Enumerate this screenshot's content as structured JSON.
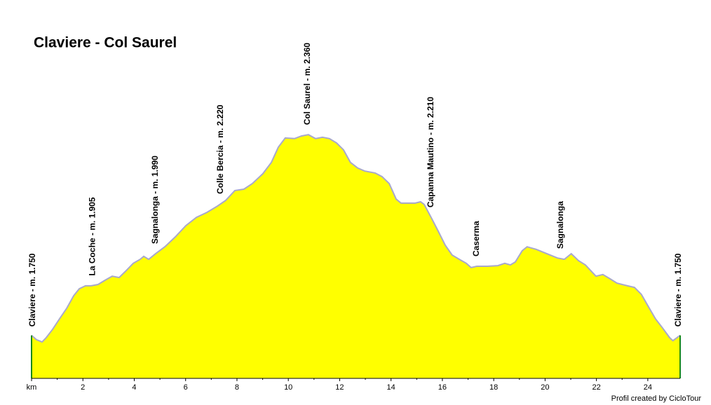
{
  "chart_data": {
    "type": "area",
    "title": "Claviere - Col Saurel",
    "credit": "Profil created by CicloTour",
    "x": [
      0,
      0.19,
      0.41,
      0.57,
      0.82,
      1.09,
      1.37,
      1.64,
      1.86,
      2.1,
      2.32,
      2.59,
      2.87,
      3.14,
      3.41,
      3.69,
      3.96,
      4.23,
      4.37,
      4.56,
      4.83,
      5.19,
      5.6,
      6.01,
      6.42,
      6.83,
      7.24,
      7.56,
      7.92,
      8.27,
      8.6,
      9.01,
      9.34,
      9.61,
      9.88,
      10.24,
      10.51,
      10.78,
      11.06,
      11.33,
      11.6,
      11.88,
      12.15,
      12.42,
      12.7,
      12.97,
      13.38,
      13.65,
      13.93,
      14.2,
      14.39,
      14.66,
      14.94,
      15.15,
      15.29,
      15.56,
      15.84,
      16.11,
      16.38,
      16.66,
      16.93,
      17.12,
      17.34,
      17.75,
      18.16,
      18.43,
      18.65,
      18.84,
      19.11,
      19.3,
      19.66,
      20.07,
      20.48,
      20.75,
      21.02,
      21.3,
      21.57,
      21.98,
      22.25,
      22.53,
      22.8,
      23.21,
      23.48,
      23.75,
      24.03,
      24.3,
      24.57,
      24.85,
      24.98,
      25.26
    ],
    "values": [
      1750,
      1737,
      1730,
      1743,
      1768,
      1800,
      1832,
      1870,
      1891,
      1900,
      1900,
      1904,
      1917,
      1929,
      1925,
      1946,
      1968,
      1980,
      1989,
      1980,
      1997,
      2018,
      2048,
      2082,
      2107,
      2122,
      2141,
      2158,
      2188,
      2192,
      2209,
      2239,
      2273,
      2319,
      2347,
      2345,
      2353,
      2357,
      2345,
      2349,
      2345,
      2332,
      2311,
      2273,
      2256,
      2247,
      2241,
      2230,
      2209,
      2162,
      2150,
      2150,
      2150,
      2154,
      2146,
      2107,
      2065,
      2023,
      1993,
      1980,
      1968,
      1955,
      1959,
      1959,
      1961,
      1968,
      1963,
      1972,
      2006,
      2018,
      2010,
      1997,
      1984,
      1980,
      1997,
      1976,
      1963,
      1929,
      1934,
      1921,
      1908,
      1900,
      1895,
      1874,
      1836,
      1800,
      1773,
      1743,
      1734,
      1750
    ],
    "color": "#ffff00",
    "line_color": "#a8a8cc",
    "edge_color": "#1a8a1a",
    "xlim": [
      0,
      25.26
    ],
    "ylim": [
      1620,
      2690
    ],
    "xticks": [
      {
        "value": 0,
        "label": "km"
      },
      2,
      4,
      6,
      8,
      10,
      12,
      14,
      16,
      18,
      20,
      22,
      24
    ],
    "annotations": [
      {
        "text": "Claviere - m. 1.750",
        "x": 0.05
      },
      {
        "text": "La Coche - m. 1.905",
        "x": 2.38
      },
      {
        "text": "Sagnalonga - m. 1.990",
        "x": 4.83
      },
      {
        "text": "Colle Bercia - m. 2.220",
        "x": 7.37
      },
      {
        "text": "Col Saurel - m. 2.360",
        "x": 10.76
      },
      {
        "text": "Capanna Mautino - m. 2.210",
        "x": 15.56
      },
      {
        "text": "Caserma",
        "x": 17.34
      },
      {
        "text": "Sagnalonga",
        "x": 20.61
      },
      {
        "text": "Claviere - m. 1.750",
        "x": 25.2
      }
    ]
  }
}
